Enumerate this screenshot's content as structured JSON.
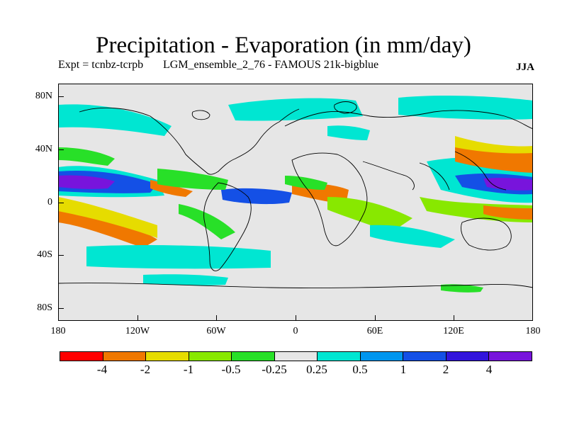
{
  "header": {
    "title": "Precipitation - Evaporation (in mm/day)",
    "expt": "Expt = tcnbz-tcrpb",
    "run": "LGM_ensemble_2_76 - FAMOUS 21k-bigblue",
    "season": "JJA"
  },
  "axes": {
    "y_labels": [
      "80N",
      "40N",
      "0",
      "40S",
      "80S"
    ],
    "x_labels": [
      "180",
      "120W",
      "60W",
      "0",
      "60E",
      "120E",
      "180"
    ]
  },
  "colorbar": {
    "colors": [
      "#ff0000",
      "#f07800",
      "#e6dc00",
      "#88e800",
      "#28e028",
      "#e6e6e6",
      "#00e6d2",
      "#0096f0",
      "#1450e6",
      "#3214dc",
      "#7814dc"
    ],
    "labels": [
      "-4",
      "-2",
      "-1",
      "-0.5",
      "-0.25",
      "0.25",
      "0.5",
      "1",
      "2",
      "4"
    ]
  },
  "colors": {
    "background": "#e6e6e6",
    "coast": "#000000"
  }
}
